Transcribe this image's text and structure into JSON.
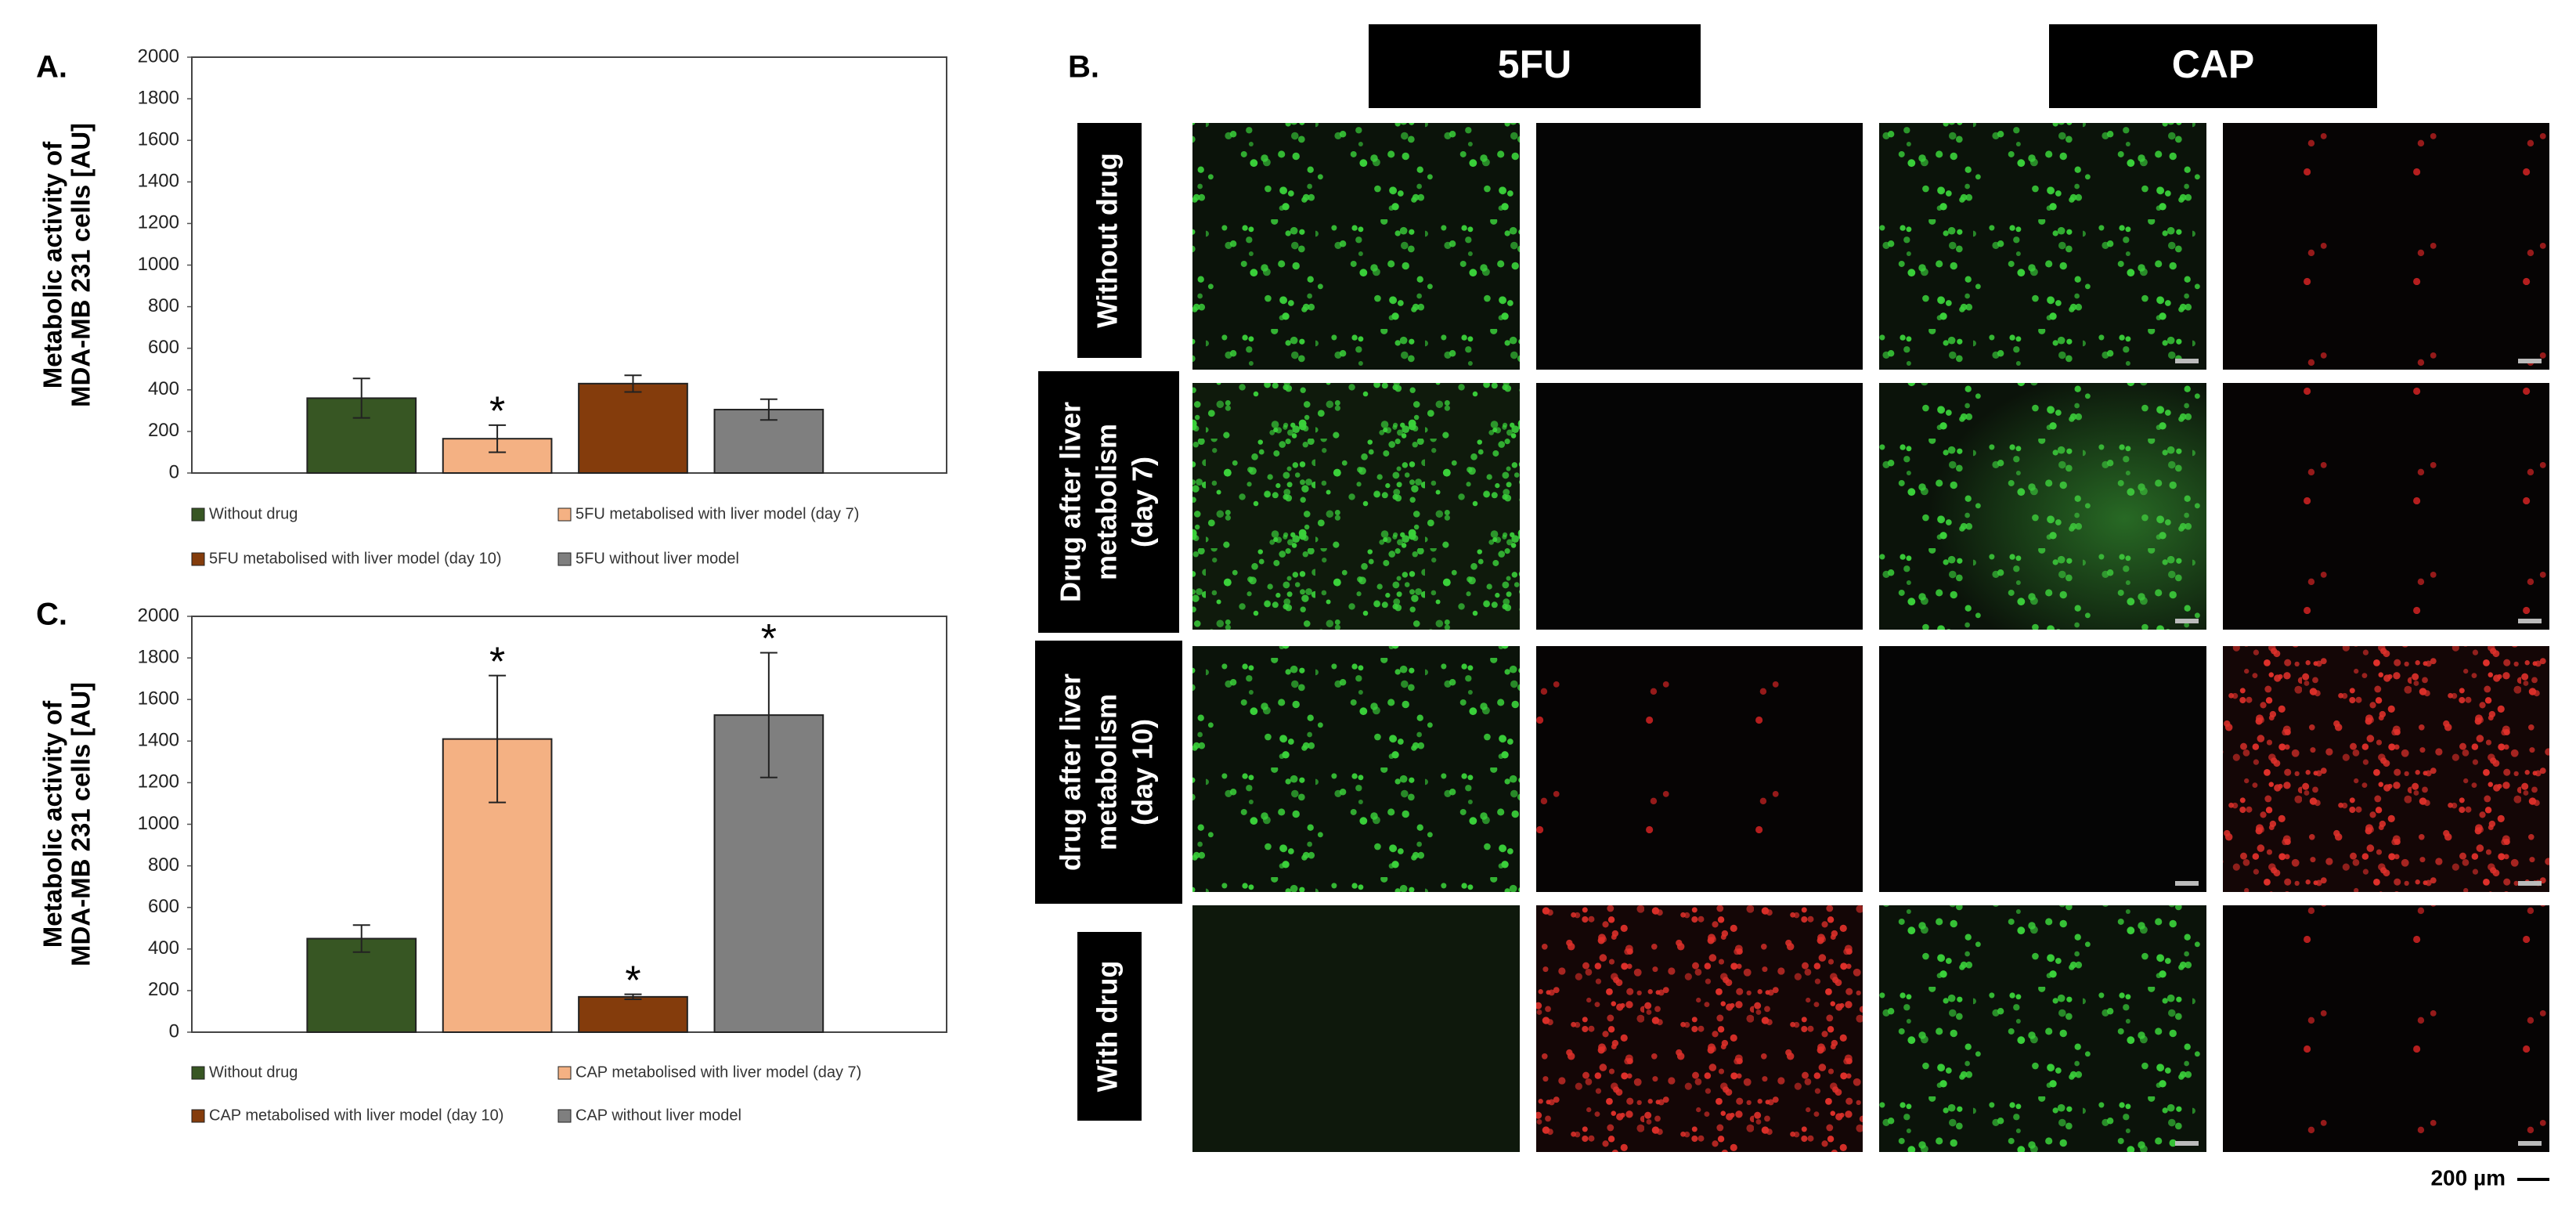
{
  "chart_data": [
    {
      "type": "bar",
      "panel_label": "A.",
      "ylabel": [
        "Metabolic activity of",
        "MDA-MB 231 cells [AU]"
      ],
      "ylim": [
        0,
        2000
      ],
      "yticks": [
        0,
        200,
        400,
        600,
        800,
        1000,
        1200,
        1400,
        1600,
        1800,
        2000
      ],
      "series": [
        {
          "name": "Without drug",
          "color": "#375623",
          "values": [
            360
          ],
          "errors": [
            95
          ]
        },
        {
          "name": "5FU metabolised with liver model (day 7)",
          "color": "#f4b183",
          "values": [
            165
          ],
          "errors": [
            65
          ],
          "annotation": "*"
        },
        {
          "name": "5FU metabolised with liver model (day 10)",
          "color": "#843c0c",
          "values": [
            430
          ],
          "errors": [
            40
          ]
        },
        {
          "name": "5FU without liver model",
          "color": "#7f7f7f",
          "values": [
            305
          ],
          "errors": [
            50
          ]
        }
      ]
    },
    {
      "type": "bar",
      "panel_label": "C.",
      "ylabel": [
        "Metabolic activity of",
        "MDA-MB 231 cells [AU]"
      ],
      "ylim": [
        0,
        2000
      ],
      "yticks": [
        0,
        200,
        400,
        600,
        800,
        1000,
        1200,
        1400,
        1600,
        1800,
        2000
      ],
      "series": [
        {
          "name": "Without drug",
          "color": "#375623",
          "values": [
            450
          ],
          "errors": [
            65
          ]
        },
        {
          "name": "CAP metabolised with liver model (day 7)",
          "color": "#f4b183",
          "values": [
            1410
          ],
          "errors": [
            305
          ],
          "annotation": "*"
        },
        {
          "name": "CAP metabolised with liver model (day 10)",
          "color": "#843c0c",
          "values": [
            170
          ],
          "errors": [
            12
          ],
          "annotation": "*"
        },
        {
          "name": "CAP without liver model",
          "color": "#7f7f7f",
          "values": [
            1525
          ],
          "errors": [
            300
          ],
          "annotation": "*"
        }
      ]
    }
  ],
  "panel_b": {
    "label": "B.",
    "columns": [
      "5FU",
      "CAP"
    ],
    "rows": [
      [
        "Without drug"
      ],
      [
        "Drug after liver",
        "metabolism",
        "(day 7)"
      ],
      [
        "drug after liver",
        "metabolism",
        "(day 10)"
      ],
      [
        "With drug"
      ]
    ],
    "scale_bar": "200 µm"
  }
}
